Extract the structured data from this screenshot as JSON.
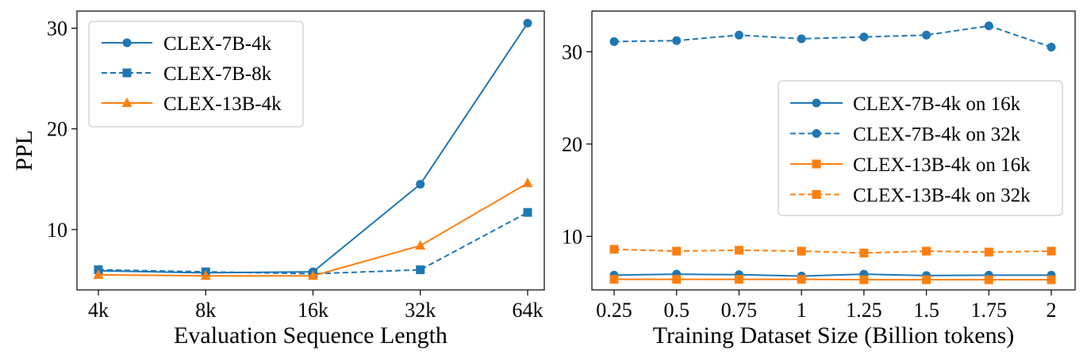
{
  "chart_data": [
    {
      "type": "line",
      "title": "",
      "xlabel": "Evaluation Sequence Length",
      "ylabel": "PPL",
      "categories": [
        "4k",
        "8k",
        "16k",
        "32k",
        "64k"
      ],
      "ylim": [
        4,
        31.7
      ],
      "yticks": [
        10,
        20,
        30
      ],
      "grid": false,
      "legend_position": "top-left",
      "series": [
        {
          "name": "CLEX-7B-4k",
          "color": "#1f77b4",
          "line": "solid",
          "marker": "circle",
          "values": [
            5.9,
            5.7,
            5.8,
            14.5,
            30.5
          ]
        },
        {
          "name": "CLEX-7B-8k",
          "color": "#1f77b4",
          "line": "dashed",
          "marker": "square",
          "values": [
            6.0,
            5.8,
            5.6,
            6.0,
            11.7
          ]
        },
        {
          "name": "CLEX-13B-4k",
          "color": "#ff7f0e",
          "line": "solid",
          "marker": "triangle",
          "values": [
            5.5,
            5.4,
            5.4,
            8.4,
            14.6
          ]
        }
      ]
    },
    {
      "type": "line",
      "title": "",
      "xlabel": "Training Dataset Size (Billion tokens)",
      "ylabel": "",
      "categories": [
        "0.25",
        "0.5",
        "0.75",
        "1",
        "1.25",
        "1.5",
        "1.75",
        "2"
      ],
      "ylim": [
        4.2,
        34.4
      ],
      "yticks": [
        10,
        20,
        30
      ],
      "grid": false,
      "legend_position": "center-right",
      "series": [
        {
          "name": "CLEX-7B-4k on 16k",
          "color": "#1f77b4",
          "line": "solid",
          "marker": "circle",
          "values": [
            5.8,
            5.9,
            5.85,
            5.7,
            5.9,
            5.75,
            5.8,
            5.8
          ]
        },
        {
          "name": "CLEX-7B-4k on 32k",
          "color": "#1f77b4",
          "line": "dashed",
          "marker": "circle",
          "values": [
            31.1,
            31.2,
            31.8,
            31.4,
            31.6,
            31.8,
            32.8,
            30.5
          ]
        },
        {
          "name": "CLEX-13B-4k on 16k",
          "color": "#ff7f0e",
          "line": "solid",
          "marker": "square",
          "values": [
            5.35,
            5.35,
            5.35,
            5.35,
            5.3,
            5.3,
            5.3,
            5.3
          ]
        },
        {
          "name": "CLEX-13B-4k on 32k",
          "color": "#ff7f0e",
          "line": "dashed",
          "marker": "square",
          "values": [
            8.6,
            8.4,
            8.5,
            8.4,
            8.2,
            8.4,
            8.3,
            8.4
          ]
        }
      ]
    }
  ]
}
